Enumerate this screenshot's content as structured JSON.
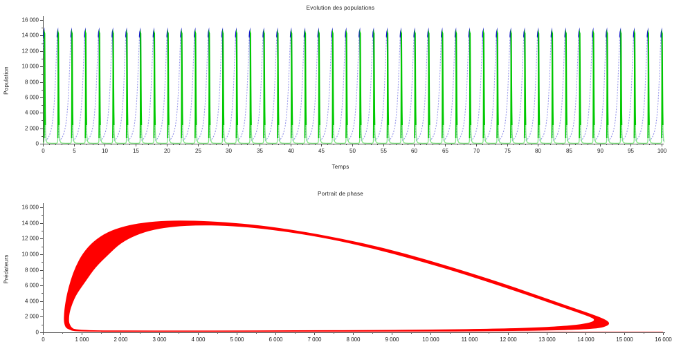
{
  "page": {
    "background": "#ffffff"
  },
  "chart_data": [
    {
      "type": "line",
      "title": "Evolution des populations",
      "xlabel": "Temps",
      "ylabel": "Population",
      "xlim": [
        0,
        100
      ],
      "ylim": [
        0,
        16000
      ],
      "grid": "off",
      "legend": "none",
      "axis_color": "#4d4d4d",
      "text_color": "#1a1a1a",
      "x_ticks": {
        "values": [
          0,
          5,
          10,
          15,
          20,
          25,
          30,
          35,
          40,
          45,
          50,
          55,
          60,
          65,
          70,
          75,
          80,
          85,
          90,
          95,
          100
        ],
        "labels": [
          "0",
          "5",
          "10",
          "15",
          "20",
          "25",
          "30",
          "35",
          "40",
          "45",
          "50",
          "55",
          "60",
          "65",
          "70",
          "75",
          "80",
          "85",
          "90",
          "95",
          "100"
        ],
        "minor_step": 1
      },
      "y_ticks": {
        "values": [
          0,
          2000,
          4000,
          6000,
          8000,
          10000,
          12000,
          14000,
          16000
        ],
        "labels": [
          "0",
          "2 000",
          "4 000",
          "6 000",
          "8 000",
          "10 000",
          "12 000",
          "14 000",
          "16 000"
        ],
        "minor_step": 1000
      },
      "series": [
        {
          "name": "proies-courbe-bleue",
          "color_light": "#9595ea",
          "color_dark": "#1212cc",
          "width_light": 1.1,
          "width_dark": 1.6,
          "light_dash": [
            2,
            2
          ],
          "period": 2.218,
          "t0": -1.7386,
          "cycles": 47,
          "peak_value": 14550,
          "min_value": 420,
          "cycle_profile": [
            [
              0.0,
              420,
              0
            ],
            [
              0.06,
              520,
              0
            ],
            [
              0.14,
              700,
              0
            ],
            [
              0.24,
              1000,
              0
            ],
            [
              0.34,
              1500,
              0
            ],
            [
              0.44,
              2300,
              0
            ],
            [
              0.52,
              3400,
              0
            ],
            [
              0.6,
              5000,
              0
            ],
            [
              0.67,
              7200,
              0
            ],
            [
              0.73,
              9800,
              0
            ],
            [
              0.78,
              12200,
              0
            ],
            [
              0.82,
              13800,
              1
            ],
            [
              0.85,
              14450,
              1
            ],
            [
              0.865,
              14550,
              1
            ],
            [
              0.88,
              13600,
              1
            ],
            [
              0.895,
              10500,
              1
            ],
            [
              0.905,
              7200,
              1
            ],
            [
              0.915,
              4500,
              0
            ],
            [
              0.93,
              2300,
              0
            ],
            [
              0.95,
              1200,
              0
            ],
            [
              0.97,
              700,
              0
            ],
            [
              1.0,
              420,
              0
            ]
          ]
        },
        {
          "name": "predateurs-courbe-verte",
          "color_light": "#7ce87c",
          "color_dark": "#00c800",
          "width_light": 1.2,
          "width_dark": 1.7,
          "light_dash": [],
          "period": 2.218,
          "t0": -1.7386,
          "cycles": 47,
          "peak_value": 14300,
          "min_value": 55,
          "cycle_profile": [
            [
              0.0,
              900,
              0
            ],
            [
              0.02,
              520,
              0
            ],
            [
              0.05,
              260,
              0
            ],
            [
              0.1,
              130,
              0
            ],
            [
              0.2,
              80,
              0
            ],
            [
              0.4,
              60,
              0
            ],
            [
              0.6,
              55,
              0
            ],
            [
              0.75,
              60,
              0
            ],
            [
              0.82,
              90,
              0
            ],
            [
              0.855,
              200,
              0
            ],
            [
              0.872,
              700,
              1
            ],
            [
              0.885,
              3200,
              1
            ],
            [
              0.895,
              9000,
              1
            ],
            [
              0.904,
              14300,
              1
            ],
            [
              0.912,
              14250,
              1
            ],
            [
              0.922,
              11800,
              1
            ],
            [
              0.935,
              7500,
              1
            ],
            [
              0.95,
              4200,
              1
            ],
            [
              0.965,
              2400,
              0
            ],
            [
              0.98,
              1400,
              0
            ],
            [
              1.0,
              900,
              0
            ]
          ]
        }
      ]
    },
    {
      "type": "line",
      "subtype": "phase-portrait",
      "title": "Portrait de phase",
      "xlabel": "",
      "ylabel": "Prédateurs",
      "xlim": [
        0,
        16000
      ],
      "ylim": [
        0,
        16000
      ],
      "grid": "off",
      "legend": "none",
      "axis_color": "#4d4d4d",
      "text_color": "#1a1a1a",
      "x_ticks": {
        "values": [
          0,
          1000,
          2000,
          3000,
          4000,
          5000,
          6000,
          7000,
          8000,
          9000,
          10000,
          11000,
          12000,
          13000,
          14000,
          15000,
          16000
        ],
        "labels": [
          "0",
          "1 000",
          "2 000",
          "3 000",
          "4 000",
          "5 000",
          "6 000",
          "7 000",
          "8 000",
          "9 000",
          "10 000",
          "11 000",
          "12 000",
          "13 000",
          "14 000",
          "15 000",
          "16 000"
        ],
        "minor_step": 500
      },
      "y_ticks": {
        "values": [
          0,
          2000,
          4000,
          6000,
          8000,
          10000,
          12000,
          14000,
          16000
        ],
        "labels": [
          "0",
          "2 000",
          "4 000",
          "6 000",
          "8 000",
          "10 000",
          "12 000",
          "14 000",
          "16 000"
        ],
        "minor_step": 1000
      },
      "band_color": "#ff0000",
      "band_outer": [
        [
          700,
          320
        ],
        [
          760,
          180
        ],
        [
          900,
          120
        ],
        [
          1200,
          95
        ],
        [
          2000,
          85
        ],
        [
          4000,
          85
        ],
        [
          6000,
          90
        ],
        [
          8000,
          100
        ],
        [
          9500,
          115
        ],
        [
          11000,
          140
        ],
        [
          12300,
          185
        ],
        [
          13300,
          260
        ],
        [
          14000,
          380
        ],
        [
          14380,
          560
        ],
        [
          14560,
          820
        ],
        [
          14620,
          1120
        ],
        [
          14580,
          1430
        ],
        [
          14440,
          1800
        ],
        [
          14150,
          2350
        ],
        [
          13650,
          3200
        ],
        [
          12900,
          4500
        ],
        [
          12000,
          6050
        ],
        [
          11000,
          7650
        ],
        [
          9900,
          9300
        ],
        [
          8800,
          10800
        ],
        [
          7700,
          12000
        ],
        [
          6600,
          13000
        ],
        [
          5600,
          13700
        ],
        [
          4700,
          14100
        ],
        [
          3900,
          14300
        ],
        [
          3200,
          14300
        ],
        [
          2600,
          14050
        ],
        [
          2100,
          13600
        ],
        [
          1650,
          12800
        ],
        [
          1300,
          11650
        ],
        [
          1030,
          10150
        ],
        [
          840,
          8400
        ],
        [
          710,
          6600
        ],
        [
          620,
          4900
        ],
        [
          570,
          3500
        ],
        [
          545,
          2400
        ],
        [
          540,
          1500
        ],
        [
          560,
          900
        ],
        [
          605,
          520
        ]
      ],
      "band_inner": [
        [
          760,
          480
        ],
        [
          900,
          350
        ],
        [
          1100,
          290
        ],
        [
          1500,
          250
        ],
        [
          2500,
          235
        ],
        [
          4500,
          240
        ],
        [
          6500,
          255
        ],
        [
          8500,
          290
        ],
        [
          10000,
          350
        ],
        [
          11500,
          450
        ],
        [
          12600,
          590
        ],
        [
          13400,
          790
        ],
        [
          13900,
          1040
        ],
        [
          14170,
          1330
        ],
        [
          14240,
          1620
        ],
        [
          14130,
          1950
        ],
        [
          13850,
          2450
        ],
        [
          13350,
          3300
        ],
        [
          12600,
          4600
        ],
        [
          11700,
          6100
        ],
        [
          10700,
          7700
        ],
        [
          9600,
          9300
        ],
        [
          8500,
          10750
        ],
        [
          7400,
          11950
        ],
        [
          6400,
          12800
        ],
        [
          5500,
          13350
        ],
        [
          4700,
          13650
        ],
        [
          4000,
          13700
        ],
        [
          3400,
          13550
        ],
        [
          2850,
          13150
        ],
        [
          2400,
          12450
        ],
        [
          2000,
          11400
        ],
        [
          1700,
          10000
        ],
        [
          1350,
          8300
        ],
        [
          1100,
          6500
        ],
        [
          870,
          4900
        ],
        [
          760,
          3700
        ],
        [
          690,
          2600
        ],
        [
          670,
          1700
        ],
        [
          680,
          1100
        ]
      ],
      "tail_line": {
        "color": "rgba(255,80,80,0.6)",
        "points": [
          [
            1500,
            85
          ],
          [
            16000,
            85
          ]
        ]
      }
    }
  ]
}
